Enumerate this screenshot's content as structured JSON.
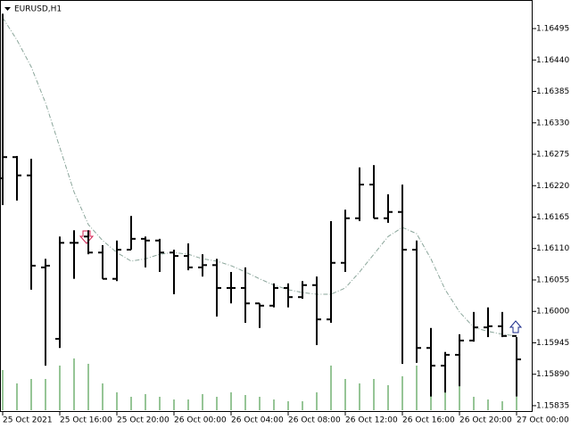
{
  "chart_data": {
    "type": "ohlc",
    "title": "EURUSD,H1",
    "categories": [
      "25 Oct 2021",
      null,
      null,
      null,
      "25 Oct 16:00",
      null,
      null,
      null,
      "25 Oct 20:00",
      null,
      null,
      null,
      "26 Oct 00:00",
      null,
      null,
      null,
      "26 Oct 04:00",
      null,
      null,
      null,
      "26 Oct 08:00",
      null,
      null,
      null,
      "26 Oct 12:00",
      null,
      null,
      null,
      "26 Oct 16:00",
      null,
      null,
      null,
      "26 Oct 20:00",
      null,
      null,
      null,
      "27 Oct 00:00"
    ],
    "open": [
      1.16233,
      1.1627,
      1.16238,
      1.16077,
      1.15952,
      1.1612,
      1.16131,
      1.16103,
      1.16057,
      1.16108,
      1.16127,
      1.16124,
      1.16103,
      1.16097,
      1.16077,
      1.16081,
      1.16041,
      1.16041,
      1.16014,
      1.1601,
      1.16041,
      1.16025,
      1.16046,
      1.15986,
      1.16085,
      1.16163,
      1.16222,
      1.16163,
      1.16174,
      1.16108,
      1.15936,
      1.15905,
      1.15924,
      1.15949,
      1.15972,
      1.15974,
      1.15957
    ],
    "high": [
      1.16521,
      1.16272,
      1.16267,
      1.16092,
      1.16131,
      1.16142,
      1.16142,
      1.16116,
      1.16124,
      1.16167,
      1.16131,
      1.16127,
      1.16108,
      1.16119,
      1.161,
      1.16092,
      1.16069,
      1.16077,
      1.16014,
      1.16049,
      1.16049,
      1.16053,
      1.16061,
      1.16158,
      1.16178,
      1.16252,
      1.16256,
      1.16205,
      1.16222,
      1.16124,
      1.15971,
      1.15929,
      1.1596,
      1.15999,
      1.16007,
      1.15999,
      1.15955
    ],
    "low": [
      1.16186,
      1.16194,
      1.16038,
      1.15905,
      1.15936,
      1.16057,
      1.161,
      1.16057,
      1.16053,
      1.16108,
      1.16077,
      1.16069,
      1.1603,
      1.16072,
      1.16061,
      1.15991,
      1.16014,
      1.1598,
      1.15971,
      1.16007,
      1.16007,
      1.16022,
      1.15941,
      1.1598,
      1.16069,
      1.16158,
      1.16163,
      1.16155,
      1.15908,
      1.1591,
      1.15851,
      1.15858,
      1.15869,
      1.15947,
      1.15955,
      1.15955,
      1.15851
    ],
    "close": [
      1.1627,
      1.16238,
      1.1608,
      1.1608,
      1.1612,
      1.1612,
      1.16103,
      1.16057,
      1.16108,
      1.16127,
      1.16124,
      1.16103,
      1.16097,
      1.16077,
      1.16081,
      1.16041,
      1.16041,
      1.16014,
      1.1601,
      1.16041,
      1.16025,
      1.16046,
      1.15986,
      1.16085,
      1.16163,
      1.16222,
      1.16163,
      1.16174,
      1.16108,
      1.15936,
      1.15905,
      1.15924,
      1.15949,
      1.15972,
      1.15974,
      1.15957,
      1.15916
    ],
    "bar_color": "#000000",
    "ma_values": [
      1.16514,
      1.16475,
      1.16428,
      1.16365,
      1.16287,
      1.16209,
      1.16152,
      1.16124,
      1.16103,
      1.16088,
      1.16092,
      1.161,
      1.16103,
      1.161,
      1.16092,
      1.16088,
      1.1608,
      1.16069,
      1.16057,
      1.16046,
      1.16038,
      1.16033,
      1.1603,
      1.1603,
      1.16041,
      1.16069,
      1.161,
      1.16131,
      1.16147,
      1.16136,
      1.16092,
      1.16038,
      1.15999,
      1.15972,
      1.15965,
      1.1596,
      1.15957
    ],
    "ma_color": "#8aa59a",
    "volumes": [
      45,
      30,
      35,
      35,
      50,
      58,
      52,
      30,
      20,
      15,
      18,
      15,
      12,
      12,
      18,
      15,
      20,
      17,
      15,
      12,
      10,
      10,
      20,
      50,
      35,
      30,
      35,
      28,
      38,
      50,
      50,
      40,
      28,
      15,
      12,
      10,
      15
    ],
    "volume_color": "#2e8b2e",
    "ylim": [
      1.15824,
      1.16545
    ],
    "yticks": [
      1.16495,
      {
        "value": 1.1644,
        "label": "1.16440"
      },
      1.16385,
      {
        "value": 1.1633,
        "label": "1.16330"
      },
      1.16275,
      {
        "value": 1.1622,
        "label": "1.16220"
      },
      1.16165,
      {
        "value": 1.1611,
        "label": "1.16110"
      },
      1.16055,
      {
        "value": 1.16,
        "label": "1.16000"
      },
      1.15945,
      {
        "value": 1.1589,
        "label": "1.15890"
      },
      1.15835
    ]
  }
}
